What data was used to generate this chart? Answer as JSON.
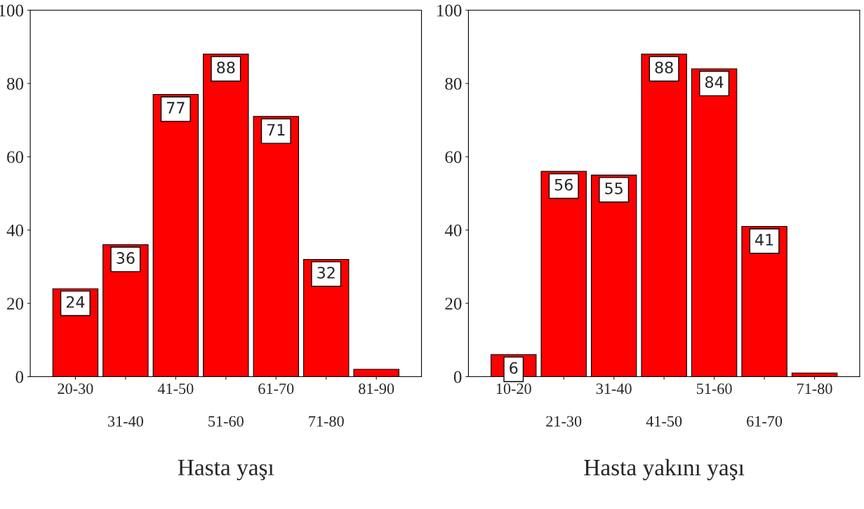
{
  "chart_data": [
    {
      "type": "bar",
      "xlabel": "Hasta yaşı",
      "categories": [
        "20-30",
        "31-40",
        "41-50",
        "51-60",
        "61-70",
        "71-80",
        "81-90"
      ],
      "values": [
        24,
        36,
        77,
        88,
        71,
        32,
        2
      ],
      "value_labels": [
        "24",
        "36",
        "77",
        "88",
        "71",
        "32",
        null
      ],
      "color": "#ff0000",
      "ylim": [
        0,
        100
      ],
      "yticks": [
        0,
        20,
        40,
        60,
        80,
        100
      ],
      "grid": false,
      "legend": false
    },
    {
      "type": "bar",
      "xlabel": "Hasta yakını yaşı",
      "categories": [
        "10-20",
        "21-30",
        "31-40",
        "41-50",
        "51-60",
        "61-70",
        "71-80"
      ],
      "values": [
        6,
        56,
        55,
        88,
        84,
        41,
        1
      ],
      "value_labels": [
        "6",
        "56",
        "55",
        "88",
        "84",
        "41",
        null
      ],
      "color": "#ff0000",
      "ylim": [
        0,
        100
      ],
      "yticks": [
        0,
        20,
        40,
        60,
        80,
        100
      ],
      "grid": false,
      "legend": false
    }
  ]
}
